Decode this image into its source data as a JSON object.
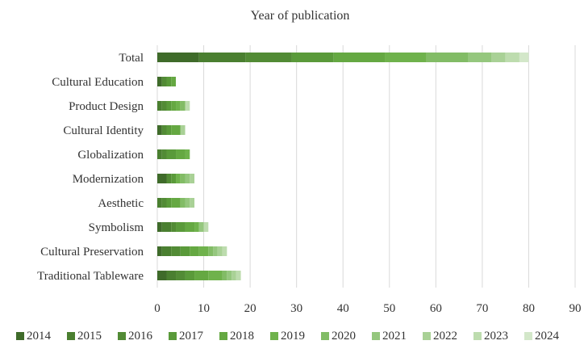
{
  "chart_data": {
    "type": "bar",
    "orientation": "horizontal",
    "stacked": true,
    "title": "Year of publication",
    "categories": [
      "Total",
      "Cultural Education",
      "Product Design",
      "Cultural Identity",
      "Globalization",
      "Modernization",
      "Aesthetic",
      "Symbolism",
      "Cultural Preservation",
      "Traditional Tableware"
    ],
    "xlim": [
      0,
      90
    ],
    "xticks": [
      0,
      10,
      20,
      30,
      40,
      50,
      60,
      70,
      80,
      90
    ],
    "grid": true,
    "legend_position": "bottom",
    "series": [
      {
        "name": "2014",
        "color": "#3f6b2a",
        "values": [
          9,
          1,
          0,
          1,
          0,
          2,
          0,
          1,
          1,
          2
        ]
      },
      {
        "name": "2015",
        "color": "#4a7f30",
        "values": [
          10,
          0,
          1,
          0,
          1,
          0,
          1,
          2,
          2,
          2
        ]
      },
      {
        "name": "2016",
        "color": "#528b35",
        "values": [
          10,
          1,
          1,
          1,
          1,
          1,
          1,
          1,
          2,
          2
        ]
      },
      {
        "name": "2017",
        "color": "#5a9a3a",
        "values": [
          9,
          1,
          1,
          1,
          2,
          1,
          1,
          2,
          2,
          2
        ]
      },
      {
        "name": "2018",
        "color": "#65a842",
        "values": [
          11,
          1,
          1,
          2,
          2,
          0,
          2,
          2,
          2,
          3
        ]
      },
      {
        "name": "2019",
        "color": "#6fb24c",
        "values": [
          9,
          0,
          1,
          0,
          1,
          1,
          0,
          1,
          2,
          3
        ]
      },
      {
        "name": "2020",
        "color": "#82bc66",
        "values": [
          9,
          0,
          1,
          0,
          0,
          1,
          1,
          0,
          1,
          1
        ]
      },
      {
        "name": "2021",
        "color": "#95c77e",
        "values": [
          5,
          0,
          0,
          0,
          0,
          1,
          1,
          1,
          1,
          1
        ]
      },
      {
        "name": "2022",
        "color": "#a9d196",
        "values": [
          3,
          0,
          0,
          1,
          0,
          1,
          1,
          0,
          1,
          1
        ]
      },
      {
        "name": "2023",
        "color": "#bddcae",
        "values": [
          3,
          0,
          1,
          0,
          0,
          0,
          0,
          1,
          1,
          1
        ]
      },
      {
        "name": "2024",
        "color": "#d3e7c9",
        "values": [
          2,
          0,
          0,
          0,
          0,
          0,
          0,
          0,
          0,
          0
        ]
      }
    ]
  }
}
